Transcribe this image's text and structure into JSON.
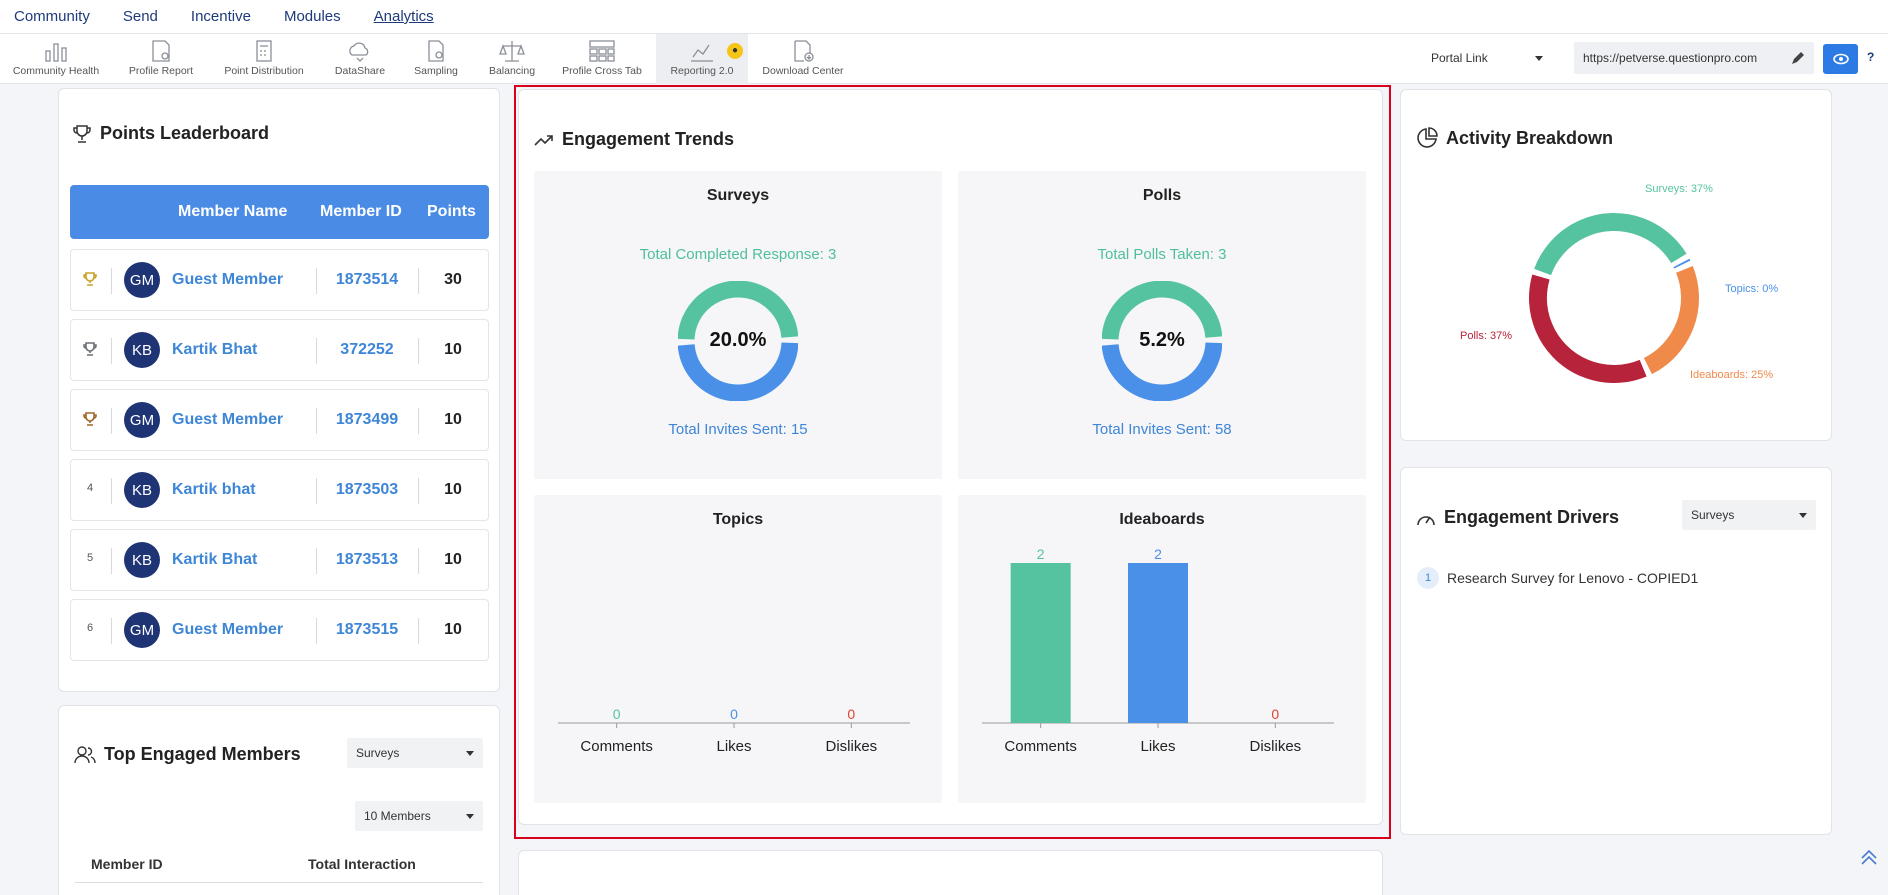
{
  "topnav": [
    "Community",
    "Send",
    "Incentive",
    "Modules",
    "Analytics"
  ],
  "toolbar": {
    "tools": [
      "Community Health",
      "Profile Report",
      "Point Distribution",
      "DataShare",
      "Sampling",
      "Balancing",
      "Profile Cross Tab",
      "Reporting 2.0",
      "Download Center"
    ],
    "badge_icon": "bulb-icon",
    "portal_link_label": "Portal Link",
    "url": "https://petverse.questionpro.com",
    "help": "?"
  },
  "leaderboard": {
    "title": "Points Leaderboard",
    "columns": [
      "Member Name",
      "Member ID",
      "Points"
    ],
    "rows": [
      {
        "rank": "",
        "initials": "GM",
        "name": "Guest Member",
        "id": "1873514",
        "points": "30",
        "trophy": "#c9a227"
      },
      {
        "rank": "",
        "initials": "KB",
        "name": "Kartik Bhat",
        "id": "372252",
        "points": "10",
        "trophy": "#6b6f76"
      },
      {
        "rank": "",
        "initials": "GM",
        "name": "Guest Member",
        "id": "1873499",
        "points": "10",
        "trophy": "#a0662a"
      },
      {
        "rank": "4",
        "initials": "KB",
        "name": "Kartik bhat",
        "id": "1873503",
        "points": "10"
      },
      {
        "rank": "5",
        "initials": "KB",
        "name": "Kartik Bhat",
        "id": "1873513",
        "points": "10"
      },
      {
        "rank": "6",
        "initials": "GM",
        "name": "Guest Member",
        "id": "1873515",
        "points": "10"
      }
    ]
  },
  "top_engaged": {
    "title": "Top Engaged Members",
    "type_select": "Surveys",
    "count_select": "10 Members",
    "columns": [
      "Member ID",
      "Total Interaction"
    ]
  },
  "engagement_trends": {
    "title": "Engagement Trends",
    "surveys": {
      "title": "Surveys",
      "completed_label": "Total Completed Response: 3",
      "percent": "20.0%",
      "invites_label": "Total Invites Sent: 15",
      "fraction": 0.2
    },
    "polls": {
      "title": "Polls",
      "taken_label": "Total Polls Taken: 3",
      "percent": "5.2%",
      "invites_label": "Total Invites Sent: 58",
      "fraction": 0.052
    },
    "topics_title": "Topics",
    "ideaboards_title": "Ideaboards"
  },
  "activity_breakdown": {
    "title": "Activity Breakdown",
    "labels": {
      "surveys": "Surveys: 37%",
      "topics": "Topics: 0%",
      "ideaboards": "Ideaboards: 25%",
      "polls": "Polls: 37%"
    }
  },
  "engagement_drivers": {
    "title": "Engagement Drivers",
    "select": "Surveys",
    "items": [
      {
        "num": "1",
        "label": "Research Survey for Lenovo - COPIED1"
      }
    ]
  },
  "colors": {
    "green": "#56c3a0",
    "blue": "#4a90e8",
    "red": "#e34234",
    "crimson": "#b8233c",
    "orange": "#f08a4b",
    "highlight": "#d9001b"
  },
  "chart_data": [
    {
      "type": "bar",
      "title": "Topics",
      "categories": [
        "Comments",
        "Likes",
        "Dislikes"
      ],
      "values": [
        0,
        0,
        0
      ],
      "colors": [
        "#56c3a0",
        "#4a90e8",
        "#e34234"
      ]
    },
    {
      "type": "bar",
      "title": "Ideaboards",
      "categories": [
        "Comments",
        "Likes",
        "Dislikes"
      ],
      "values": [
        2,
        2,
        0
      ],
      "colors": [
        "#56c3a0",
        "#4a90e8",
        "#e34234"
      ]
    },
    {
      "type": "pie",
      "title": "Activity Breakdown",
      "categories": [
        "Surveys",
        "Topics",
        "Ideaboards",
        "Polls"
      ],
      "values": [
        37,
        0,
        25,
        37
      ],
      "colors": [
        "#56c3a0",
        "#4a90e8",
        "#f08a4b",
        "#b8233c"
      ]
    }
  ]
}
